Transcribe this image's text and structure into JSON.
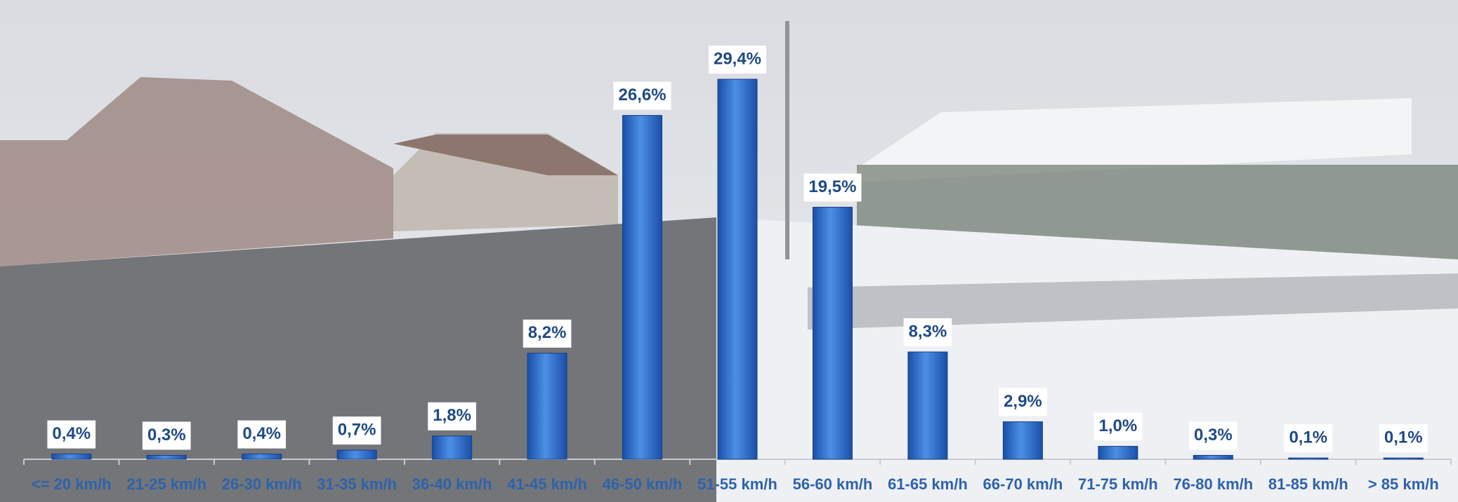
{
  "chart_data": {
    "type": "bar",
    "categories": [
      "<= 20 km/h",
      "21-25 km/h",
      "26-30 km/h",
      "31-35 km/h",
      "36-40 km/h",
      "41-45 km/h",
      "46-50 km/h",
      "51-55 km/h",
      "56-60 km/h",
      "61-65 km/h",
      "66-70 km/h",
      "71-75 km/h",
      "76-80 km/h",
      "81-85 km/h",
      "> 85 km/h"
    ],
    "values": [
      0.4,
      0.3,
      0.4,
      0.7,
      1.8,
      8.2,
      26.6,
      29.4,
      19.5,
      8.3,
      2.9,
      1.0,
      0.3,
      0.1,
      0.1
    ],
    "value_labels": [
      "0,4%",
      "0,3%",
      "0,4%",
      "0,7%",
      "1,8%",
      "8,2%",
      "26,6%",
      "29,4%",
      "19,5%",
      "8,3%",
      "2,9%",
      "1,0%",
      "0,3%",
      "0,1%",
      "0,1%"
    ],
    "color": "#2a6bd0"
  }
}
